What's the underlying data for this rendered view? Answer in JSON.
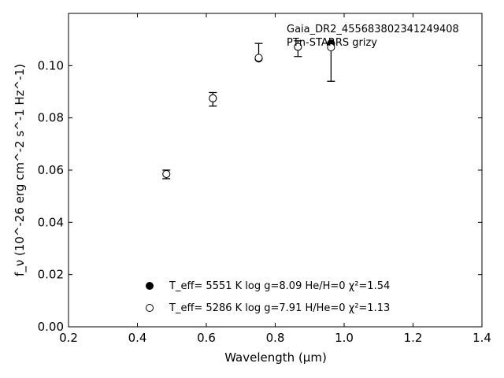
{
  "chart_data": {
    "type": "scatter",
    "annotation_lines": [
      "Gaia_DR2_455683802341249408",
      "PTn-STARRS grizy"
    ],
    "xlabel": "Wavelength (μm)",
    "ylabel": "f_ν (10^-26 erg cm^-2 s^-1 Hz^-1)",
    "xlim": [
      0.2,
      1.4
    ],
    "ylim": [
      0.0,
      0.12
    ],
    "xticks": [
      0.2,
      0.4,
      0.6,
      0.8,
      1.0,
      1.2,
      1.4
    ],
    "xtick_labels": [
      "0.2",
      "0.4",
      "0.6",
      "0.8",
      "1.0",
      "1.2",
      "1.4"
    ],
    "yticks": [
      0.0,
      0.02,
      0.04,
      0.06,
      0.08,
      0.1
    ],
    "ytick_labels": [
      "0.00",
      "0.02",
      "0.04",
      "0.06",
      "0.08",
      "0.10"
    ],
    "grid": false,
    "observed": {
      "x": [
        0.484,
        0.619,
        0.752,
        0.866,
        0.962
      ],
      "y": [
        0.0585,
        0.0875,
        0.103,
        0.1065,
        0.103
      ],
      "err_lo": [
        0.0567,
        0.0845,
        0.1025,
        0.1035,
        0.094
      ],
      "err_hi": [
        0.06,
        0.0897,
        0.1085,
        0.1095,
        0.1085
      ]
    },
    "series": [
      {
        "marker": "filled",
        "x": [
          0.484,
          0.619,
          0.752,
          0.866,
          0.962
        ],
        "y": [
          0.0585,
          0.0875,
          0.1027,
          0.1072,
          0.1085
        ]
      },
      {
        "marker": "open",
        "x": [
          0.484,
          0.619,
          0.752,
          0.866,
          0.962
        ],
        "y": [
          0.0585,
          0.0875,
          0.103,
          0.1072,
          0.107
        ]
      }
    ],
    "legend": {
      "placement": "lower-center",
      "entries": [
        {
          "marker": "filled",
          "label": "T_eff=  5551 K  log g=8.09  He/H=0  χ²=1.54"
        },
        {
          "marker": "open",
          "label": "T_eff=  5286 K  log g=7.91  H/He=0  χ²=1.13"
        }
      ]
    }
  }
}
